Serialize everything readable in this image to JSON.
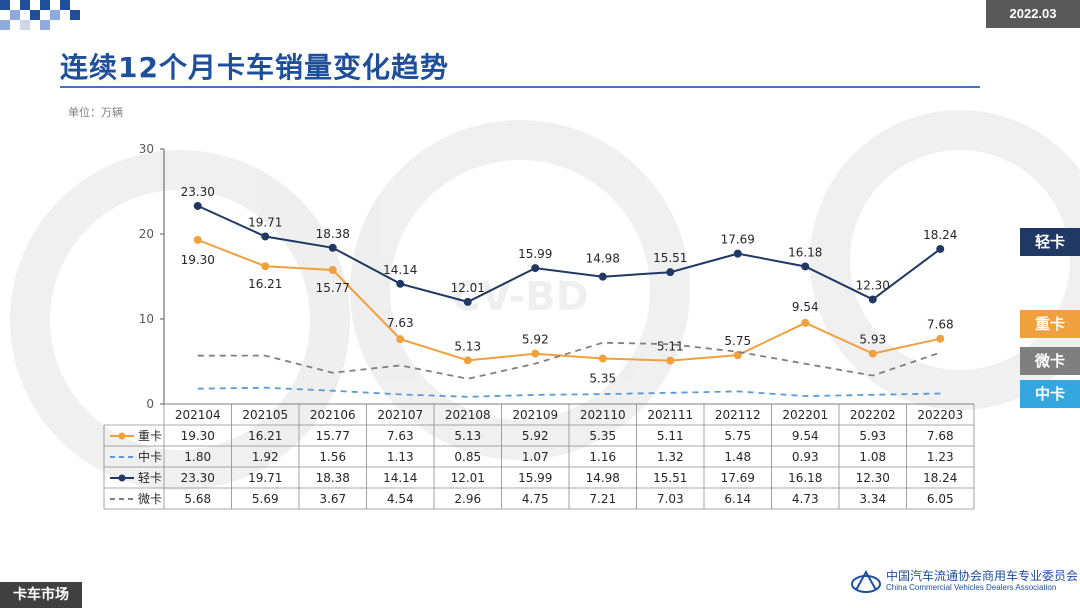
{
  "header": {
    "date": "2022.03",
    "title": "连续12个月卡车销量变化趋势",
    "unit": "单位：万辆"
  },
  "footer": {
    "section": "卡车市场",
    "org_cn": "中国汽车流通协会商用车专业委员会",
    "org_en": "China Commercial Vehicles Dealers Association",
    "watermark": "CV-BD"
  },
  "tags": {
    "light": "轻卡",
    "heavy": "重卡",
    "micro": "微卡",
    "medium": "中卡"
  },
  "colors": {
    "light": "#1f3864",
    "heavy": "#f0a03c",
    "micro": "#7f7f7f",
    "medium": "#5b9bd5",
    "title": "#1f4e9a"
  },
  "chart_data": {
    "type": "line",
    "title": "连续12个月卡车销量变化趋势",
    "ylabel": "单位：万辆",
    "ylim": [
      0,
      30
    ],
    "yticks": [
      0,
      10,
      20,
      30
    ],
    "categories": [
      "202104",
      "202105",
      "202106",
      "202107",
      "202108",
      "202109",
      "202110",
      "202111",
      "202112",
      "202201",
      "202202",
      "202203"
    ],
    "series": [
      {
        "name": "重卡",
        "style": "solid-marker",
        "values": [
          19.3,
          16.21,
          15.77,
          7.63,
          5.13,
          5.92,
          5.35,
          5.11,
          5.75,
          9.54,
          5.93,
          7.68
        ]
      },
      {
        "name": "中卡",
        "style": "dashed",
        "values": [
          1.8,
          1.92,
          1.56,
          1.13,
          0.85,
          1.07,
          1.16,
          1.32,
          1.48,
          0.93,
          1.08,
          1.23
        ]
      },
      {
        "name": "轻卡",
        "style": "solid-marker",
        "values": [
          23.3,
          19.71,
          18.38,
          14.14,
          12.01,
          15.99,
          14.98,
          15.51,
          17.69,
          16.18,
          12.3,
          18.24
        ]
      },
      {
        "name": "微卡",
        "style": "dashed",
        "values": [
          5.68,
          5.69,
          3.67,
          4.54,
          2.96,
          4.75,
          7.21,
          7.03,
          6.14,
          4.73,
          3.34,
          6.05
        ]
      }
    ]
  }
}
